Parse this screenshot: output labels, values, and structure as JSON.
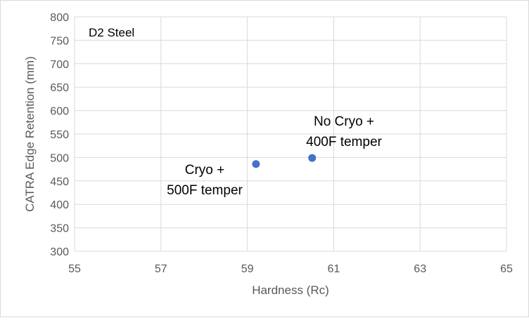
{
  "chart_data": {
    "type": "scatter",
    "title": "",
    "xlabel": "Hardness (Rc)",
    "ylabel": "CATRA Edge Retention (mm)",
    "xlim": [
      55,
      65
    ],
    "ylim": [
      300,
      800
    ],
    "xticks": [
      55,
      57,
      59,
      61,
      63,
      65
    ],
    "yticks": [
      300,
      350,
      400,
      450,
      500,
      550,
      600,
      650,
      700,
      750,
      800
    ],
    "grid": true,
    "series": [
      {
        "name": "D2 Steel",
        "color": "#4472c4",
        "points": [
          {
            "x": 59.2,
            "y": 486
          },
          {
            "x": 60.5,
            "y": 499
          }
        ]
      }
    ],
    "annotations": [
      {
        "lines": [
          "Cryo +",
          "500F temper"
        ]
      },
      {
        "lines": [
          "No Cryo +",
          "400F temper"
        ]
      },
      {
        "lines": [
          "D2 Steel"
        ]
      }
    ]
  }
}
